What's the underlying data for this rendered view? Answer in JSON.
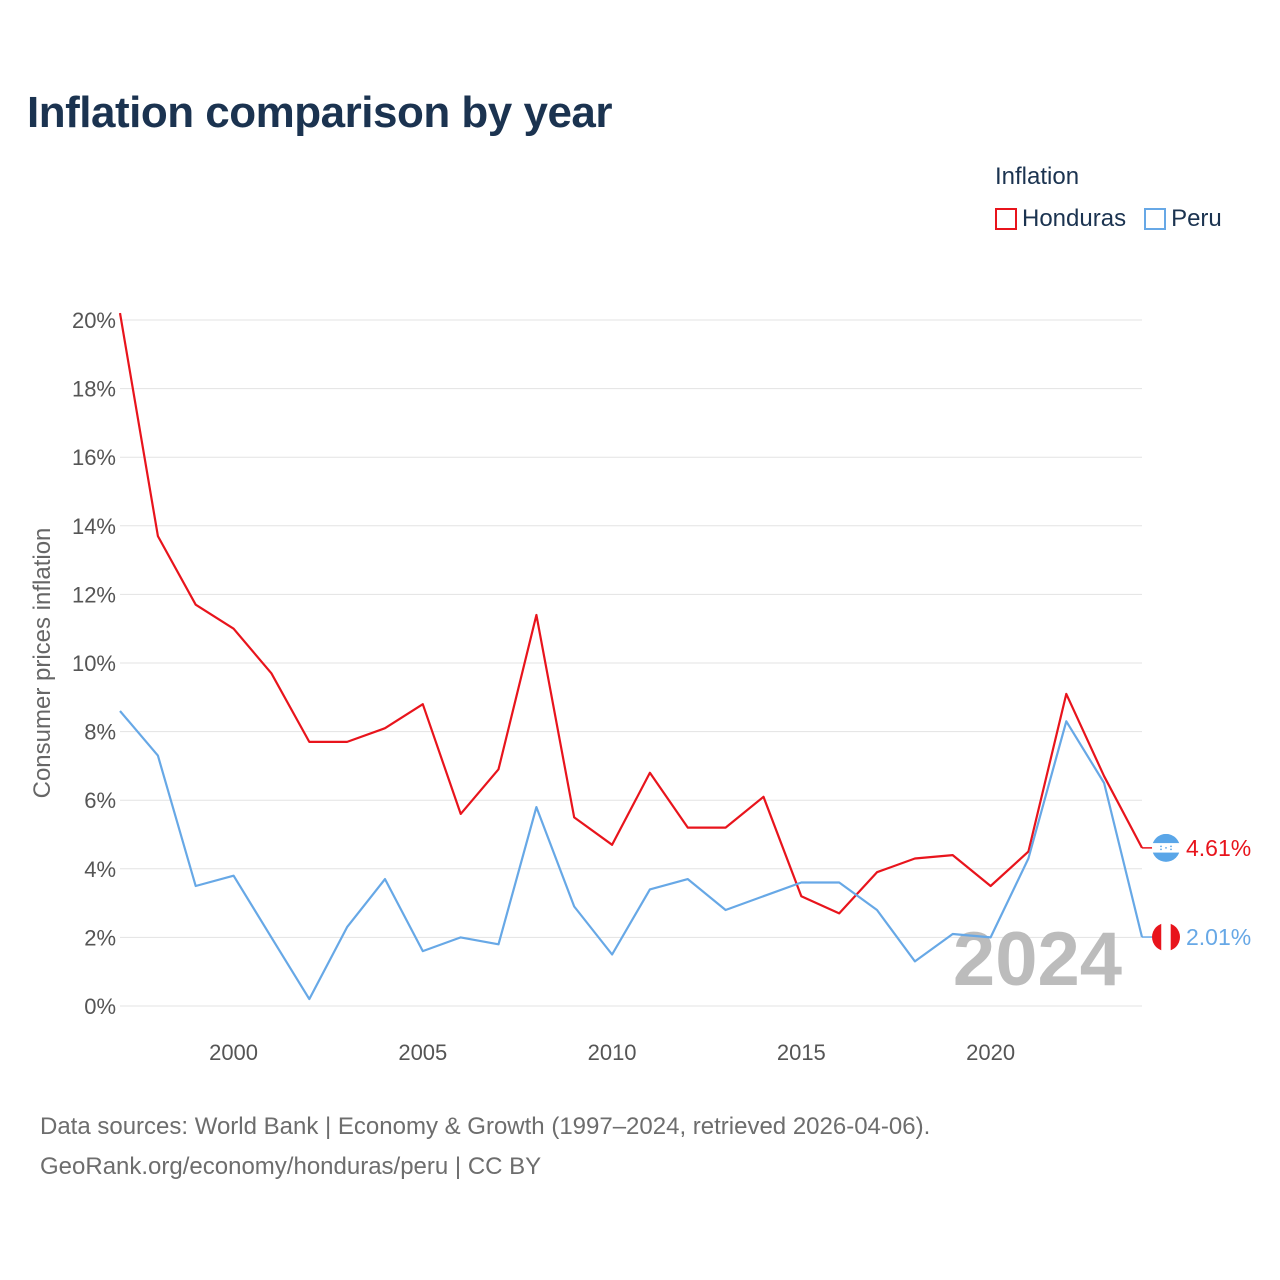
{
  "title": "Inflation comparison by year",
  "legend": {
    "title": "Inflation",
    "items": [
      {
        "label": "Honduras",
        "color": "#e8141c"
      },
      {
        "label": "Peru",
        "color": "#67a8e6"
      }
    ]
  },
  "footer": {
    "line1": "Data sources: World Bank | Economy & Growth (1997–2024, retrieved 2026-04-06).",
    "line2": "GeoRank.org/economy/honduras/peru | CC BY"
  },
  "chart_data": {
    "type": "line",
    "title": "Inflation comparison by year",
    "xlabel": "",
    "ylabel": "Consumer prices inflation",
    "xlim": [
      1997,
      2024
    ],
    "ylim": [
      0,
      20
    ],
    "yticks": [
      0,
      2,
      4,
      6,
      8,
      10,
      12,
      14,
      16,
      18,
      20
    ],
    "ytick_labels": [
      "0%",
      "2%",
      "4%",
      "6%",
      "8%",
      "10%",
      "12%",
      "14%",
      "16%",
      "18%",
      "20%"
    ],
    "xticks": [
      2000,
      2005,
      2010,
      2015,
      2020
    ],
    "xtick_labels": [
      "2000",
      "2005",
      "2010",
      "2015",
      "2020"
    ],
    "watermark": "2024",
    "grid": true,
    "x": [
      1997,
      1998,
      1999,
      2000,
      2001,
      2002,
      2003,
      2004,
      2005,
      2006,
      2007,
      2008,
      2009,
      2010,
      2011,
      2012,
      2013,
      2014,
      2015,
      2016,
      2017,
      2018,
      2019,
      2020,
      2021,
      2022,
      2023,
      2024
    ],
    "series": [
      {
        "name": "Honduras",
        "color": "#e8141c",
        "end_label": "4.61%",
        "values": [
          20.2,
          13.7,
          11.7,
          11.0,
          9.7,
          7.7,
          7.7,
          8.1,
          8.8,
          5.6,
          6.9,
          11.4,
          5.5,
          4.7,
          6.8,
          5.2,
          5.2,
          6.1,
          3.2,
          2.7,
          3.9,
          4.3,
          4.4,
          3.5,
          4.5,
          9.1,
          6.7,
          4.61
        ]
      },
      {
        "name": "Peru",
        "color": "#67a8e6",
        "end_label": "2.01%",
        "values": [
          8.6,
          7.3,
          3.5,
          3.8,
          2.0,
          0.2,
          2.3,
          3.7,
          1.6,
          2.0,
          1.8,
          5.8,
          2.9,
          1.5,
          3.4,
          3.7,
          2.8,
          3.2,
          3.6,
          3.6,
          2.8,
          1.3,
          2.1,
          2.0,
          4.3,
          8.3,
          6.5,
          2.01
        ]
      }
    ]
  }
}
